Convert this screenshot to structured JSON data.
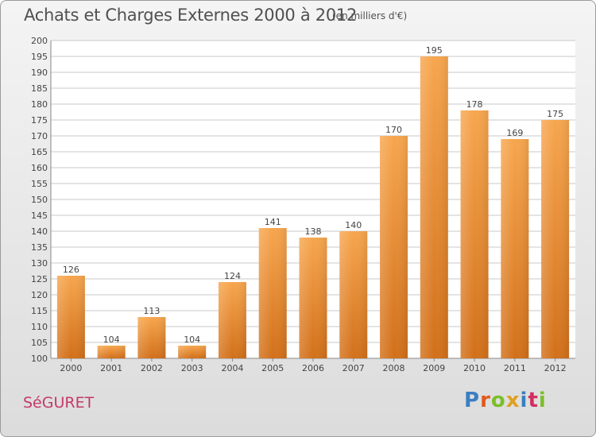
{
  "title": "Achats et Charges Externes 2000 à 2012",
  "unit_note": "(en milliers d'€)",
  "commune": "SéGURET",
  "brand": {
    "letters": [
      "P",
      "r",
      "o",
      "x",
      "i",
      "t",
      "i"
    ],
    "colors": [
      "#3a7fc1",
      "#e05a1a",
      "#7cbf2a",
      "#e0a020",
      "#3a7fc1",
      "#d03060",
      "#7cbf2a"
    ]
  },
  "colors": {
    "bar_top": "#f7a64e",
    "bar_bottom": "#d2701a",
    "grid": "#c8c8c8",
    "plot_bg": "#ffffff",
    "axis_text": "#444444",
    "title_text": "#505050",
    "commune_text": "#c43a6a"
  },
  "chart_data": {
    "type": "bar",
    "title": "Achats et Charges Externes 2000 à 2012",
    "categories": [
      "2000",
      "2001",
      "2002",
      "2003",
      "2004",
      "2005",
      "2006",
      "2007",
      "2008",
      "2009",
      "2010",
      "2011",
      "2012"
    ],
    "values": [
      126,
      104,
      113,
      104,
      124,
      141,
      138,
      140,
      170,
      195,
      178,
      169,
      175
    ],
    "ylim": [
      100,
      200
    ],
    "ytick_step": 5,
    "grid": "horizontal",
    "xlabel": "",
    "ylabel": ""
  }
}
